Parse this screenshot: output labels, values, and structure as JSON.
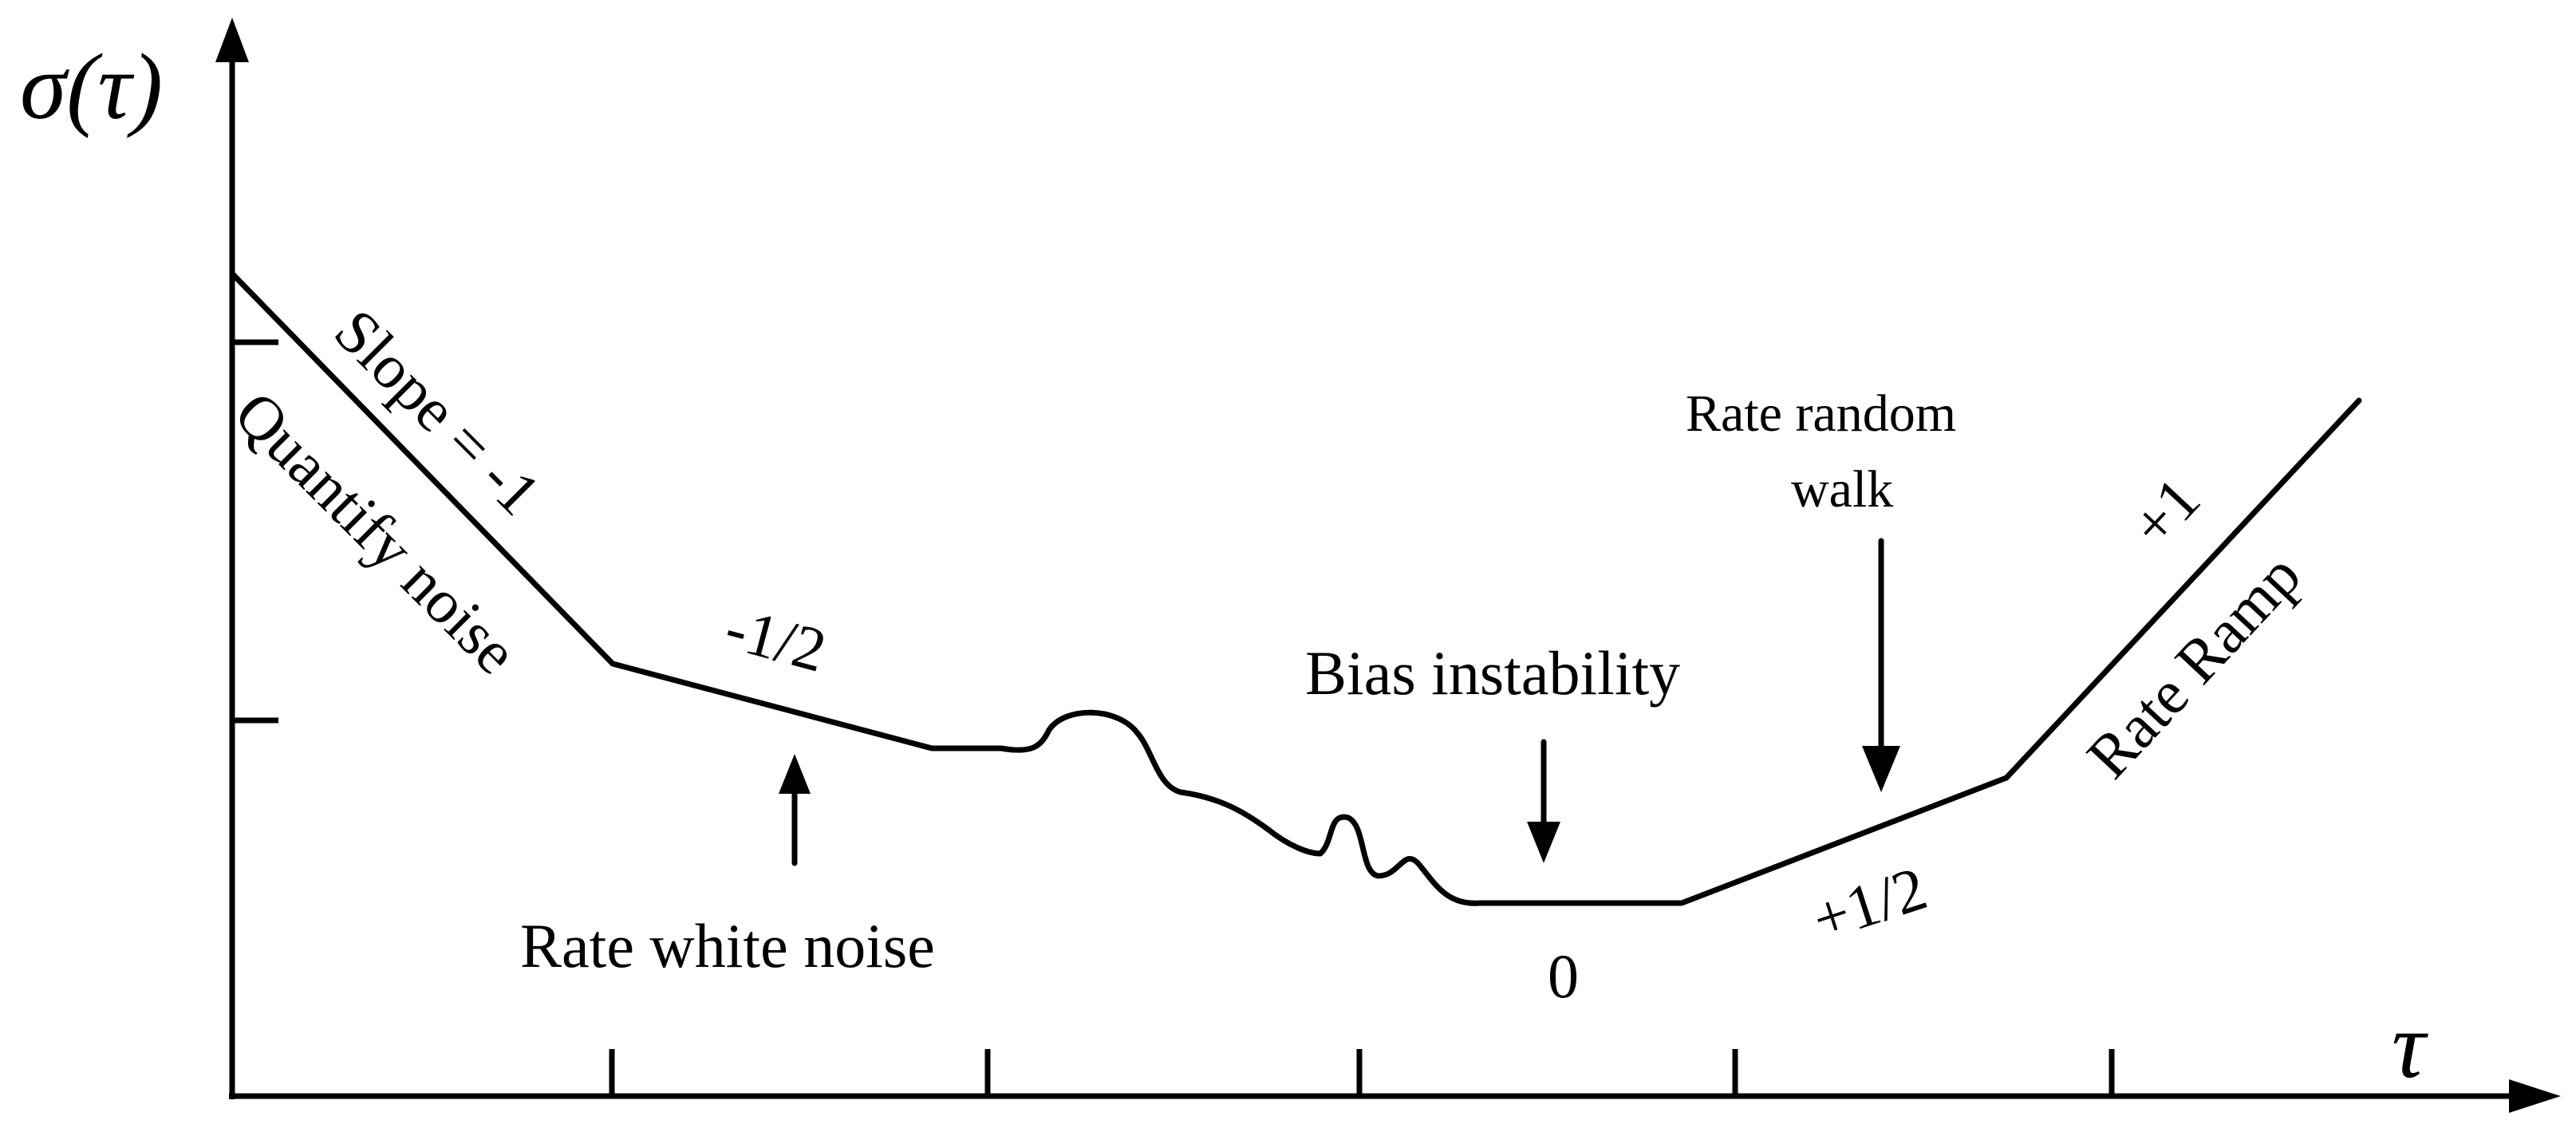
{
  "axes": {
    "y_symbol": "σ(τ)",
    "x_symbol": "τ"
  },
  "segments": {
    "quantify": {
      "slope_label": "Slope = -1",
      "name": "Quantify noise"
    },
    "rate_white": {
      "slope_label": "-1/2",
      "name": "Rate white noise"
    },
    "bias": {
      "name": "Bias instability",
      "slope_label": "0"
    },
    "rate_random_walk": {
      "name_line1": "Rate random",
      "name_line2": "walk",
      "slope_label": "+1/2"
    },
    "rate_ramp": {
      "slope_label": "+1",
      "name": "Rate Ramp"
    }
  }
}
